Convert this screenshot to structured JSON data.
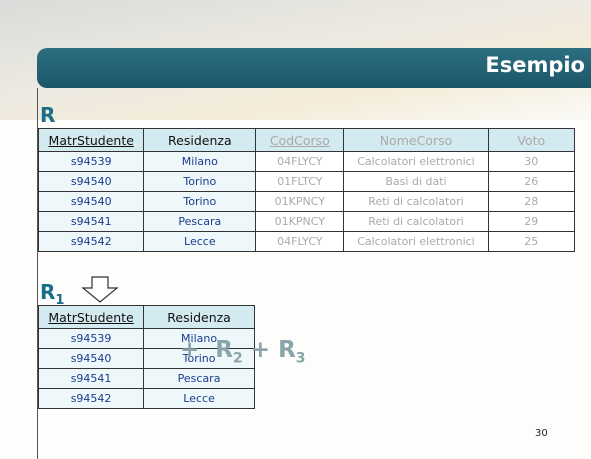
{
  "title": "Esempio",
  "relation_r": {
    "label": "R",
    "table": {
      "header": [
        "MatrStudente",
        "Residenza",
        "CodCorso",
        "NomeCorso",
        "Voto"
      ],
      "rows": [
        [
          "s94539",
          "Milano",
          "04FLYCY",
          "Calcolatori elettronici",
          30
        ],
        [
          "s94540",
          "Torino",
          "01FLTCY",
          "Basi di dati",
          26
        ],
        [
          "s94540",
          "Torino",
          "01KPNCY",
          "Reti di calcolatori",
          28
        ],
        [
          "s94541",
          "Pescara",
          "01KPNCY",
          "Reti di calcolatori",
          29
        ],
        [
          "s94542",
          "Lecce",
          "04FLYCY",
          "Calcolatori elettronici",
          25
        ]
      ]
    }
  },
  "relation_r1": {
    "label": "R",
    "subscript": "1",
    "table": {
      "header": [
        "MatrStudente",
        "Residenza"
      ],
      "rows": [
        [
          "s94539",
          "Milano"
        ],
        [
          "s94540",
          "Torino"
        ],
        [
          "s94541",
          "Pescara"
        ],
        [
          "s94542",
          "Lecce"
        ]
      ]
    }
  },
  "expression": [
    "+",
    "R",
    "2",
    "+",
    "R",
    "3"
  ],
  "page_number": "30"
}
